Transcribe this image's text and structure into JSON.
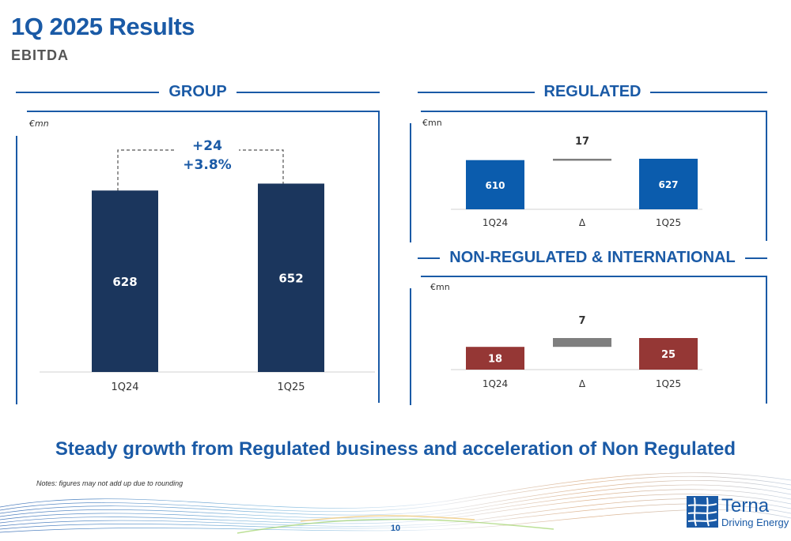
{
  "slide": {
    "title": "1Q 2025 Results",
    "subtitle": "EBITDA",
    "tagline": "Steady growth from Regulated business and acceleration of Non Regulated",
    "note": "Notes: figures may not add up due to rounding",
    "page_number": "10",
    "logo": {
      "name": "Terna",
      "tagline": "Driving Energy"
    }
  },
  "sections": {
    "group": "GROUP",
    "regulated": "REGULATED",
    "non_regulated": "NON-REGULATED & INTERNATIONAL"
  },
  "colors": {
    "brand_blue": "#1a5aa6",
    "group_bar": "#1b365d",
    "regulated_bar": "#0b5cad",
    "non_regulated_bar": "#953735",
    "delta_bar": "#7f7f7f"
  },
  "chart_data": [
    {
      "type": "bar",
      "panel": "group",
      "unit_label": "€mn",
      "categories": [
        "1Q24",
        "1Q25"
      ],
      "values": [
        628,
        652
      ],
      "annotation": {
        "delta_abs": "+24",
        "delta_pct": "+3.8%"
      },
      "ylim": [
        0,
        820
      ]
    },
    {
      "type": "bar",
      "panel": "regulated",
      "unit_label": "€mn",
      "categories": [
        "1Q24",
        "Δ",
        "1Q25"
      ],
      "values": [
        610,
        17,
        627
      ],
      "labels": [
        "610",
        "17",
        "627"
      ],
      "waterfall": true
    },
    {
      "type": "bar",
      "panel": "non_regulated",
      "unit_label": "€mn",
      "categories": [
        "1Q24",
        "Δ",
        "1Q25"
      ],
      "values": [
        18,
        7,
        25
      ],
      "labels": [
        "18",
        "7",
        "25"
      ],
      "waterfall": true
    }
  ]
}
